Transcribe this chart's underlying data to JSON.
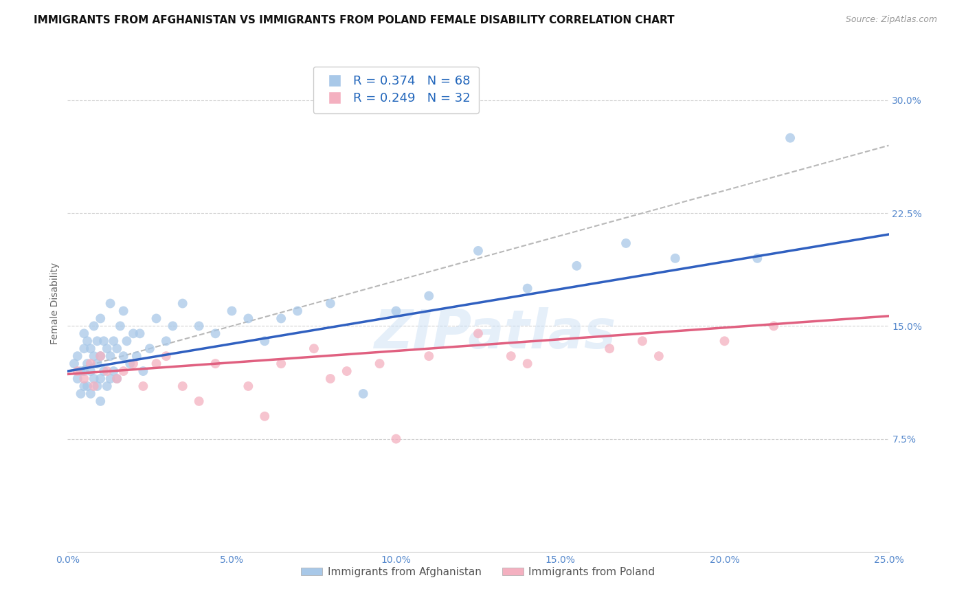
{
  "title": "IMMIGRANTS FROM AFGHANISTAN VS IMMIGRANTS FROM POLAND FEMALE DISABILITY CORRELATION CHART",
  "source": "Source: ZipAtlas.com",
  "ylabel_label": "Female Disability",
  "xlim": [
    0,
    25
  ],
  "ylim": [
    0,
    33
  ],
  "watermark": "ZIPatlas",
  "afghanistan_R": "0.374",
  "afghanistan_N": "68",
  "poland_R": "0.249",
  "poland_N": "32",
  "afghanistan_color": "#a8c8e8",
  "poland_color": "#f4b0c0",
  "afghanistan_line_color": "#3060c0",
  "poland_line_color": "#e06080",
  "diagonal_color": "#b8b8b8",
  "background_color": "#ffffff",
  "grid_color": "#d0d0d0",
  "afg_x": [
    0.2,
    0.3,
    0.3,
    0.4,
    0.4,
    0.5,
    0.5,
    0.5,
    0.5,
    0.6,
    0.6,
    0.6,
    0.7,
    0.7,
    0.7,
    0.8,
    0.8,
    0.8,
    0.9,
    0.9,
    0.9,
    1.0,
    1.0,
    1.0,
    1.0,
    1.1,
    1.1,
    1.2,
    1.2,
    1.3,
    1.3,
    1.3,
    1.4,
    1.4,
    1.5,
    1.5,
    1.6,
    1.7,
    1.7,
    1.8,
    1.9,
    2.0,
    2.1,
    2.2,
    2.3,
    2.5,
    2.7,
    3.0,
    3.2,
    3.5,
    4.0,
    4.5,
    5.0,
    5.5,
    6.0,
    6.5,
    7.0,
    8.0,
    9.0,
    10.0,
    11.0,
    12.5,
    14.0,
    15.5,
    17.0,
    18.5,
    21.0,
    22.0
  ],
  "afg_y": [
    12.5,
    11.5,
    13.0,
    10.5,
    12.0,
    11.0,
    12.0,
    13.5,
    14.5,
    11.0,
    12.5,
    14.0,
    10.5,
    12.0,
    13.5,
    11.5,
    13.0,
    15.0,
    11.0,
    12.5,
    14.0,
    10.0,
    11.5,
    13.0,
    15.5,
    12.0,
    14.0,
    11.0,
    13.5,
    11.5,
    13.0,
    16.5,
    12.0,
    14.0,
    11.5,
    13.5,
    15.0,
    13.0,
    16.0,
    14.0,
    12.5,
    14.5,
    13.0,
    14.5,
    12.0,
    13.5,
    15.5,
    14.0,
    15.0,
    16.5,
    15.0,
    14.5,
    16.0,
    15.5,
    14.0,
    15.5,
    16.0,
    16.5,
    10.5,
    16.0,
    17.0,
    20.0,
    17.5,
    19.0,
    20.5,
    19.5,
    19.5,
    27.5
  ],
  "pol_x": [
    0.3,
    0.5,
    0.7,
    0.8,
    1.0,
    1.2,
    1.5,
    1.7,
    2.0,
    2.3,
    2.7,
    3.0,
    3.5,
    4.5,
    5.5,
    6.5,
    7.5,
    8.5,
    9.5,
    11.0,
    12.5,
    14.0,
    16.5,
    17.5,
    18.0,
    20.0,
    21.5,
    13.5,
    6.0,
    10.0,
    4.0,
    8.0
  ],
  "pol_y": [
    12.0,
    11.5,
    12.5,
    11.0,
    13.0,
    12.0,
    11.5,
    12.0,
    12.5,
    11.0,
    12.5,
    13.0,
    11.0,
    12.5,
    11.0,
    12.5,
    13.5,
    12.0,
    12.5,
    13.0,
    14.5,
    12.5,
    13.5,
    14.0,
    13.0,
    14.0,
    15.0,
    13.0,
    9.0,
    7.5,
    10.0,
    11.5
  ]
}
